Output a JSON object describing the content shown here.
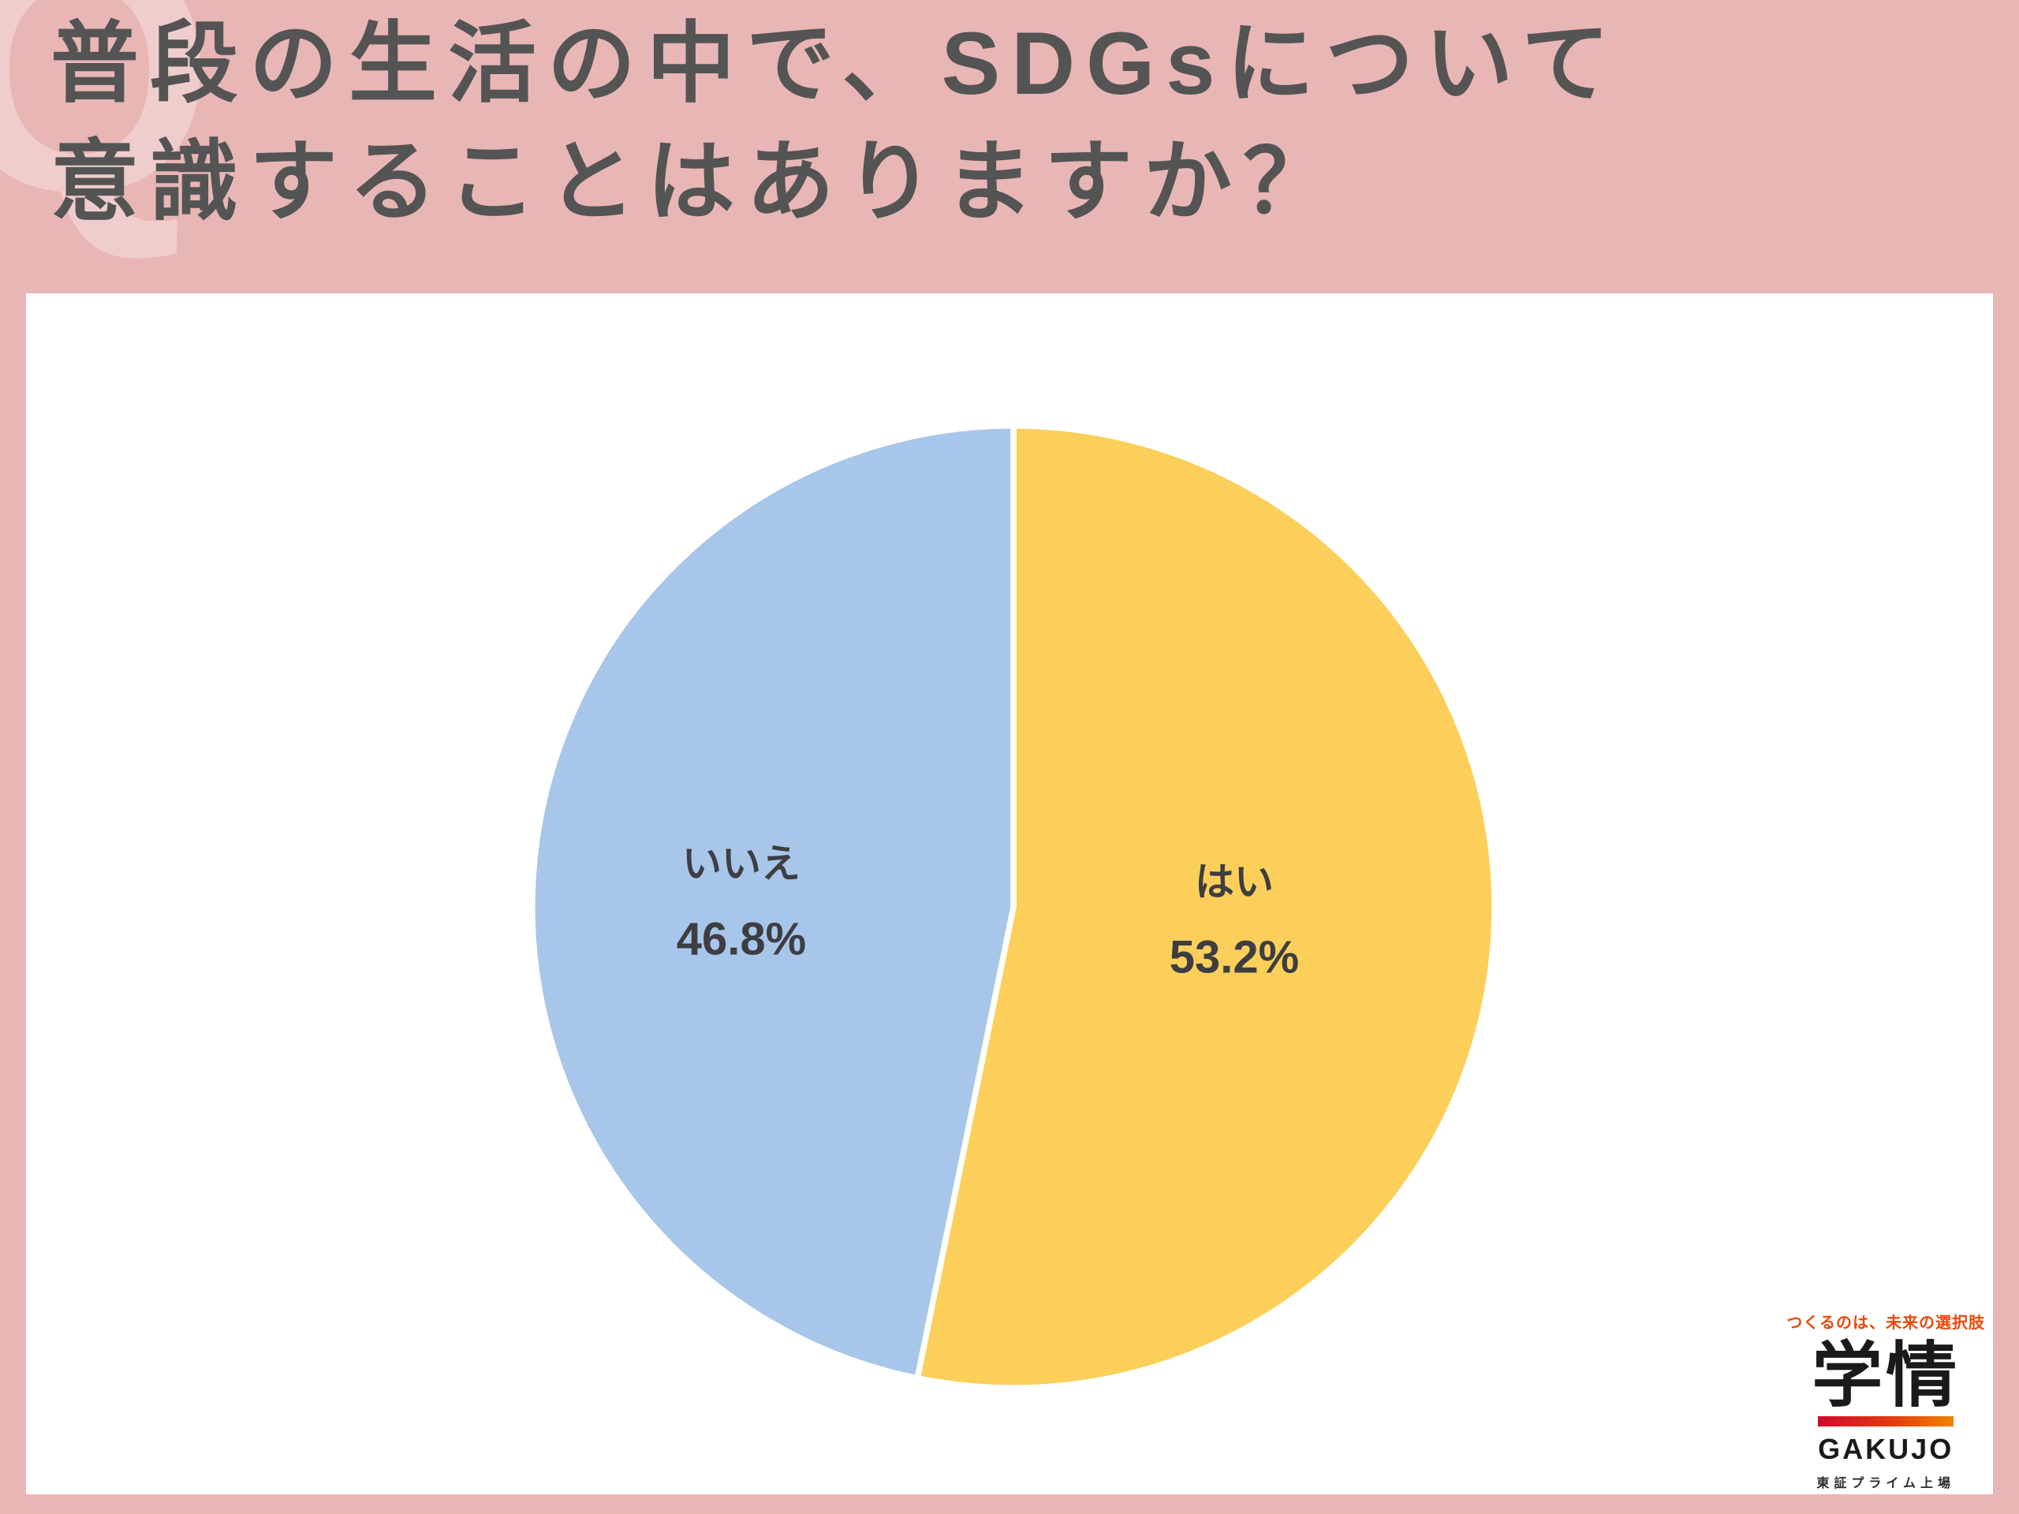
{
  "title": {
    "line1": "普段の生活の中で、SDGsについて",
    "line2": "意識することはありますか？"
  },
  "watermark": "Q",
  "chart_data": {
    "type": "pie",
    "title": "普段の生活の中で、SDGsについて意識することはありますか？",
    "direction": "clockwise",
    "start_angle_deg": 0,
    "labels_inside": true,
    "slices": [
      {
        "label": "はい",
        "value": 53.2,
        "display_value": "53.2%",
        "color": "#fccf5a"
      },
      {
        "label": "いいえ",
        "value": 46.8,
        "display_value": "46.8%",
        "color": "#a8c6ea"
      }
    ]
  },
  "logo": {
    "tagline": "つくるのは、未来の選択肢",
    "kanji": "学情",
    "name": "GAKUJO",
    "subtext": "東証プライム上場"
  },
  "colors": {
    "background_pink": "#e9b6b6",
    "panel_white": "#ffffff",
    "title_text": "#545454",
    "pie_yes": "#fccf5a",
    "pie_no": "#a8c6ea",
    "pie_label_text": "#3d3d42",
    "slice_divider": "#ffffff",
    "brand_red": "#cf0a2c",
    "brand_orange": "#f08300",
    "tagline_color": "#ee4709"
  }
}
